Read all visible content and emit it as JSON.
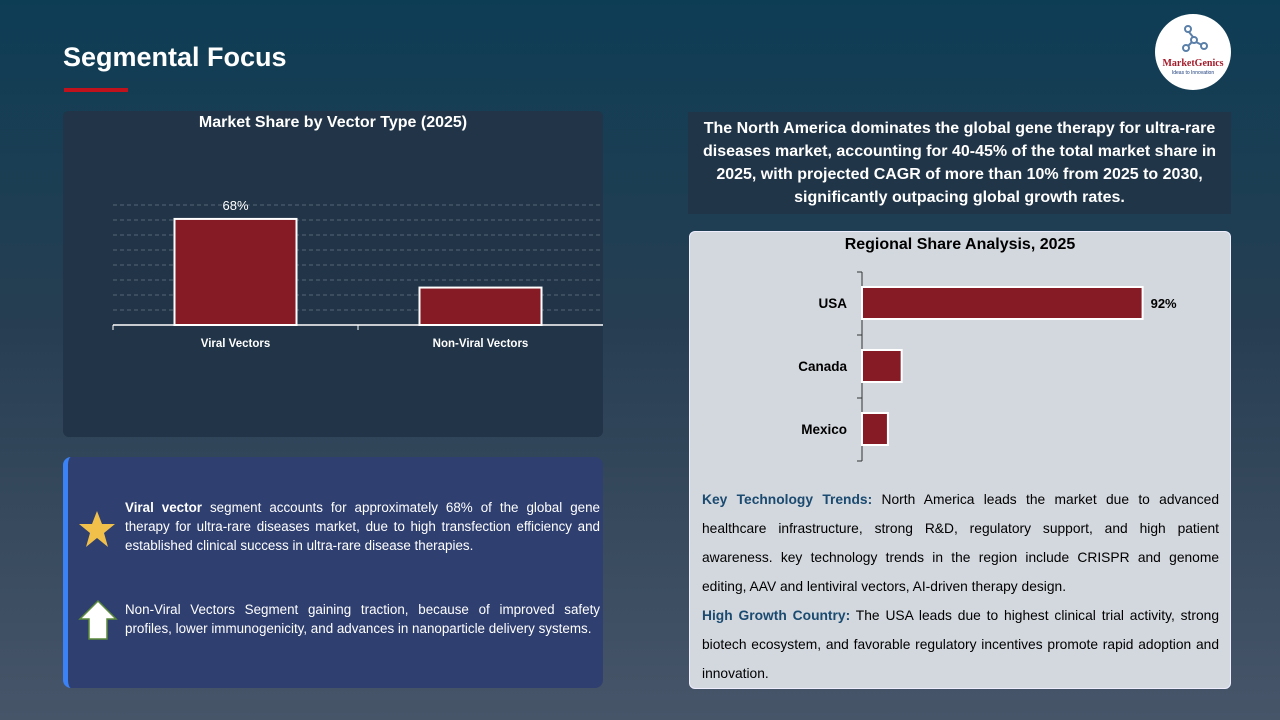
{
  "header": {
    "title": "Segmental Focus",
    "logo_name": "MarketGenics",
    "logo_tagline": "Ideas to Innovation"
  },
  "chart_data": [
    {
      "type": "bar",
      "title": "Market Share by Vector Type (2025)",
      "categories": [
        "Viral Vectors",
        "Non-Viral Vectors"
      ],
      "values": [
        68,
        24
      ],
      "data_labels": [
        "68%",
        ""
      ],
      "ylim": [
        0,
        80
      ],
      "grid": true,
      "colors": [
        "#861b26"
      ]
    },
    {
      "type": "bar",
      "orientation": "horizontal",
      "title": "Regional Share Analysis, 2025",
      "categories": [
        "USA",
        "Canada",
        "Mexico"
      ],
      "values": [
        92,
        13,
        8.5
      ],
      "data_labels": [
        "92%",
        "",
        ""
      ],
      "xlim": [
        0,
        100
      ],
      "grid": false,
      "colors": [
        "#861b26"
      ]
    }
  ],
  "segments": [
    {
      "icon": "star-icon",
      "bold": "Viral vector",
      "text": " segment accounts for approximately 68% of the global gene therapy for ultra-rare diseases market, due to high transfection efficiency and established clinical success in ultra-rare disease therapies."
    },
    {
      "icon": "arrow-up-icon",
      "text": "Non-Viral Vectors Segment gaining traction, because of improved safety profiles, lower immunogenicity, and advances in nanoparticle delivery systems."
    }
  ],
  "callout": "The North America dominates the global gene therapy for ultra-rare diseases market, accounting for 40-45% of the total market share in 2025, with projected CAGR of more than 10% from 2025 to 2030, significantly outpacing global growth rates.",
  "trends": {
    "k1": "Key Technology Trends:",
    "t1": " North America leads the market due to advanced healthcare infrastructure, strong R&D, regulatory support, and high patient awareness. key technology trends in the region include CRISPR and genome editing, AAV and lentiviral vectors, AI-driven therapy design.",
    "k2": "High Growth Country:",
    "t2": " The USA leads due to highest clinical trial activity, strong biotech ecosystem, and favorable regulatory incentives promote rapid adoption and innovation."
  }
}
